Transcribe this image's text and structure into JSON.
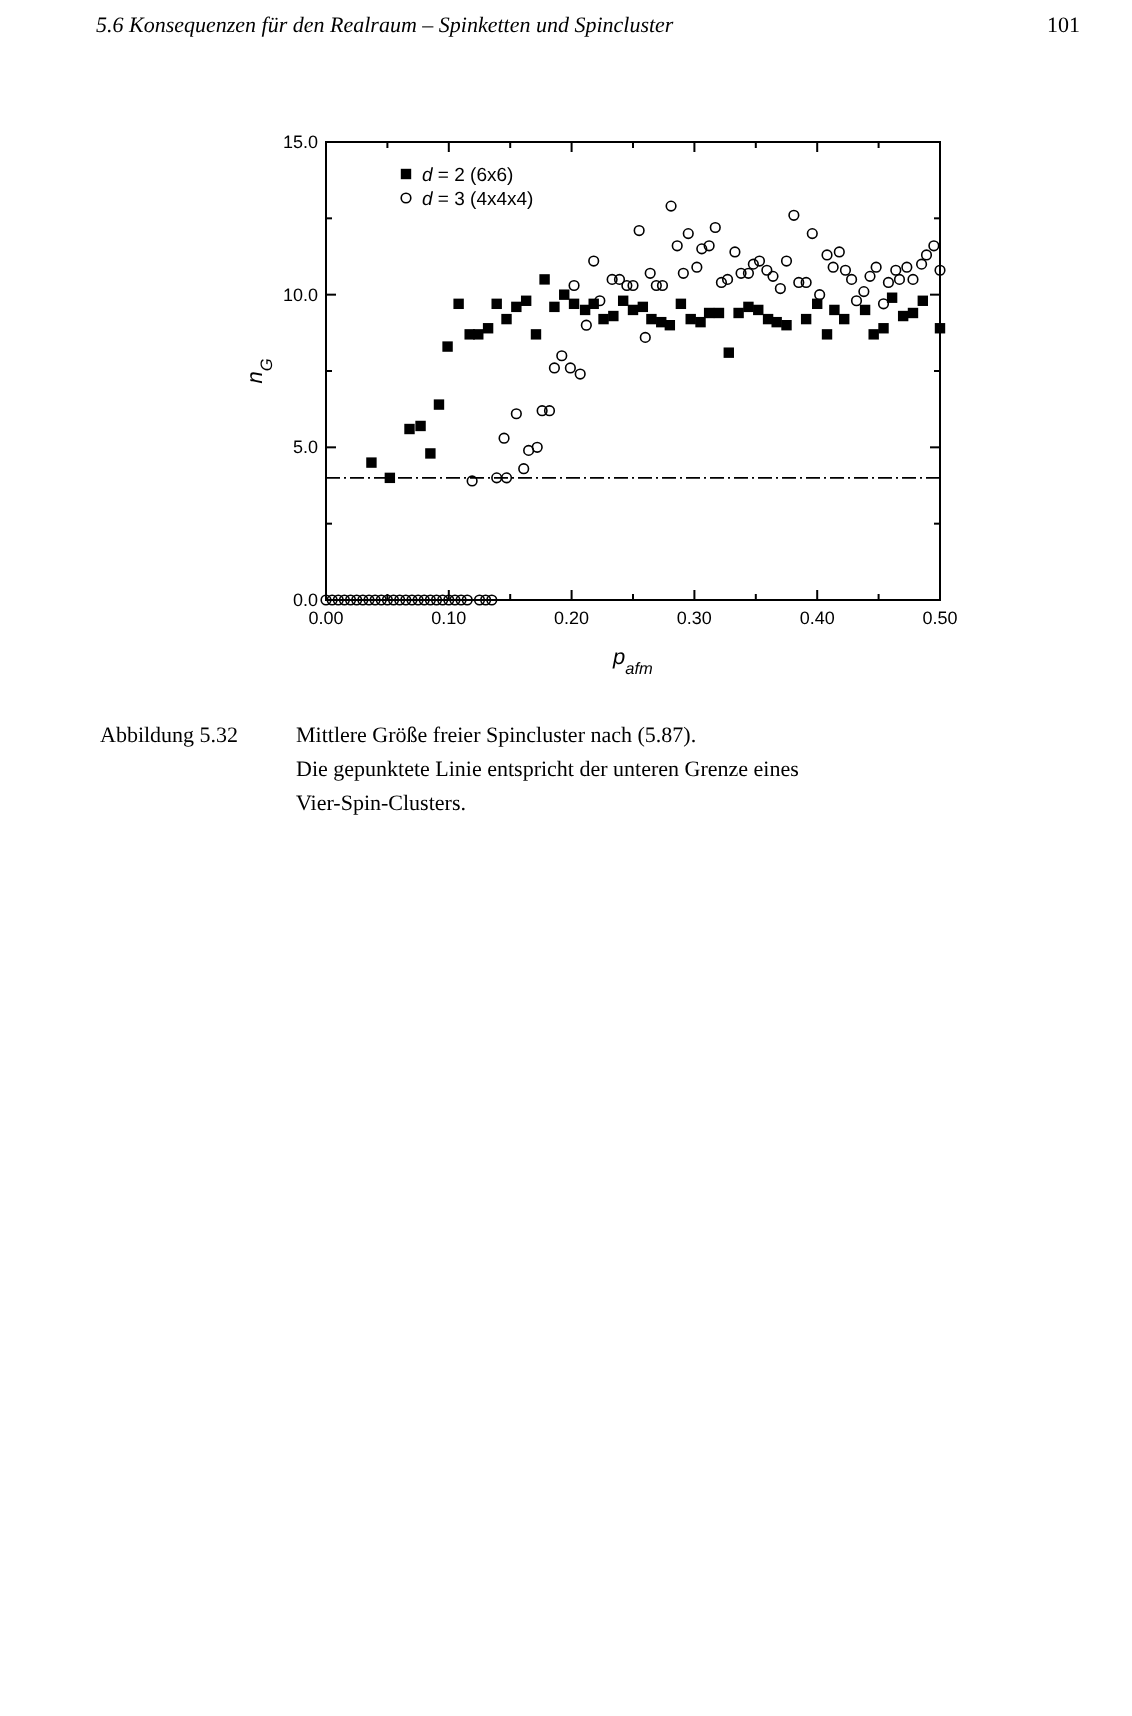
{
  "chart_data": {
    "type": "scatter",
    "title": "5.6  Konsequenzen für den Realraum – Spinketten und Spincluster",
    "xlabel": "p$_{afm}$",
    "ylabel": "n$_{G}$",
    "annotations": [
      "101",
      "Abbildung 5.32",
      "Mittlere Größe freier Spincluster nach (5.87).",
      "Die gepunktete Linie entspricht der unteren Grenze eines Vier-Spin-Clusters."
    ],
    "xlim": [
      0,
      0.5
    ],
    "ylim": [
      0,
      15
    ],
    "xticks": [
      {
        "value": 0,
        "label": "0.00"
      },
      {
        "value": 0.05,
        "label": null
      },
      {
        "value": 0.1,
        "label": "0.10"
      },
      {
        "value": 0.15,
        "label": null
      },
      {
        "value": 0.2,
        "label": "0.20"
      },
      {
        "value": 0.25,
        "label": null
      },
      {
        "value": 0.3,
        "label": "0.30"
      },
      {
        "value": 0.35,
        "label": null
      },
      {
        "value": 0.4,
        "label": "0.40"
      },
      {
        "value": 0.45,
        "label": null
      },
      {
        "value": 0.5,
        "label": "0.50"
      }
    ],
    "yticks": [
      {
        "value": 0,
        "label": "0.0"
      },
      {
        "value": 2.5,
        "label": null
      },
      {
        "value": 5,
        "label": "5.0"
      },
      {
        "value": 7.5,
        "label": null
      },
      {
        "value": 10,
        "label": "10.0"
      },
      {
        "value": 12.5,
        "label": null
      },
      {
        "value": 15,
        "label": "15.0"
      }
    ],
    "legend": "top left",
    "grid": false,
    "ref_lines": [
      {
        "axis": "y",
        "value": 4,
        "line_style": "dotted",
        "color": "#000000"
      }
    ],
    "series": [
      {
        "name": "d = 2 (6x6)",
        "color": "#000000",
        "marker": "square",
        "x": [
          0.037,
          0.052,
          0.068,
          0.077,
          0.085,
          0.092,
          0.099,
          0.108,
          0.117,
          0.124,
          0.132,
          0.139,
          0.147,
          0.155,
          0.163,
          0.171,
          0.178,
          0.186,
          0.194,
          0.202,
          0.211,
          0.218,
          0.226,
          0.234,
          0.242,
          0.25,
          0.258,
          0.265,
          0.273,
          0.28,
          0.289,
          0.297,
          0.305,
          0.312,
          0.32,
          0.328,
          0.336,
          0.344,
          0.352,
          0.36,
          0.367,
          0.375,
          0.391,
          0.4,
          0.408,
          0.414,
          0.422,
          0.439,
          0.446,
          0.454,
          0.461,
          0.47,
          0.478,
          0.486,
          0.5
        ],
        "values": [
          4.5,
          4.0,
          5.6,
          5.7,
          4.8,
          6.4,
          8.3,
          9.7,
          8.7,
          8.7,
          8.9,
          9.7,
          9.2,
          9.6,
          9.8,
          8.7,
          10.5,
          9.6,
          10.0,
          9.7,
          9.5,
          9.7,
          9.2,
          9.3,
          9.8,
          9.5,
          9.6,
          9.2,
          9.1,
          9.0,
          9.7,
          9.2,
          9.1,
          9.4,
          9.4,
          8.1,
          9.4,
          9.6,
          9.5,
          9.2,
          9.1,
          9.0,
          9.2,
          9.7,
          8.7,
          9.5,
          9.2,
          9.5,
          8.7,
          8.9,
          9.9,
          9.3,
          9.4,
          9.8,
          8.9
        ]
      },
      {
        "name": "d = 3 (4x4x4)",
        "color": "#000000",
        "marker": "circle",
        "x": [
          0,
          0.005,
          0.01,
          0.015,
          0.02,
          0.025,
          0.03,
          0.035,
          0.04,
          0.045,
          0.05,
          0.055,
          0.06,
          0.065,
          0.07,
          0.075,
          0.08,
          0.085,
          0.09,
          0.095,
          0.1,
          0.105,
          0.11,
          0.115,
          0.119,
          0.125,
          0.13,
          0.135,
          0.139,
          0.145,
          0.147,
          0.155,
          0.161,
          0.165,
          0.172,
          0.176,
          0.182,
          0.186,
          0.192,
          0.199,
          0.202,
          0.207,
          0.212,
          0.218,
          0.223,
          0.233,
          0.239,
          0.245,
          0.25,
          0.255,
          0.26,
          0.264,
          0.269,
          0.274,
          0.281,
          0.286,
          0.291,
          0.295,
          0.302,
          0.306,
          0.312,
          0.317,
          0.322,
          0.327,
          0.333,
          0.338,
          0.344,
          0.348,
          0.353,
          0.359,
          0.364,
          0.37,
          0.375,
          0.381,
          0.385,
          0.391,
          0.396,
          0.402,
          0.408,
          0.413,
          0.418,
          0.423,
          0.428,
          0.432,
          0.438,
          0.443,
          0.448,
          0.454,
          0.458,
          0.464,
          0.467,
          0.473,
          0.478,
          0.485,
          0.489,
          0.495,
          0.5
        ],
        "values": [
          0,
          0,
          0,
          0,
          0,
          0,
          0,
          0,
          0,
          0,
          0,
          0,
          0,
          0,
          0,
          0,
          0,
          0,
          0,
          0,
          0,
          0,
          0,
          0,
          3.9,
          0,
          0,
          0,
          4.0,
          5.3,
          4.0,
          6.1,
          4.3,
          4.9,
          5.0,
          6.2,
          6.2,
          7.6,
          8.0,
          7.6,
          10.3,
          7.4,
          9.0,
          11.1,
          9.8,
          10.5,
          10.5,
          10.3,
          10.3,
          12.1,
          8.6,
          10.7,
          10.3,
          10.3,
          12.9,
          11.6,
          10.7,
          12.0,
          10.9,
          11.5,
          11.6,
          12.2,
          10.4,
          10.5,
          11.4,
          10.7,
          10.7,
          11.0,
          11.1,
          10.8,
          10.6,
          10.2,
          11.1,
          12.6,
          10.4,
          10.4,
          12.0,
          10.0,
          11.3,
          10.9,
          11.4,
          10.8,
          10.5,
          9.8,
          10.1,
          10.6,
          10.9,
          9.7,
          10.4,
          10.8,
          10.5,
          10.9,
          10.5,
          11.0,
          11.3,
          11.6,
          10.8
        ]
      }
    ]
  }
}
